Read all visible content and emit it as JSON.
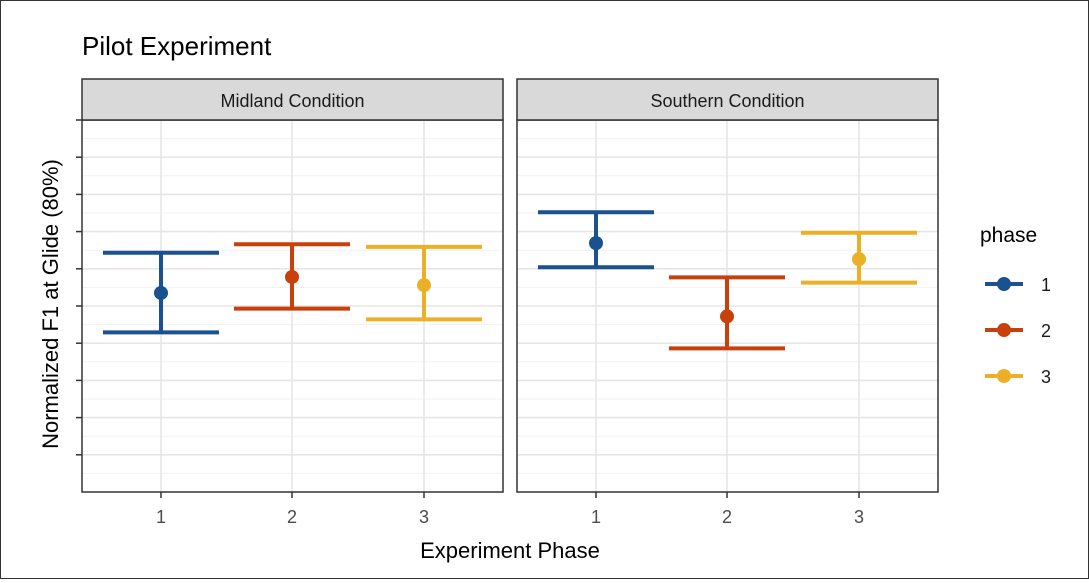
{
  "chart_data": {
    "type": "errorbar",
    "title": "Pilot Experiment",
    "xlabel": "Experiment Phase",
    "ylabel": "Normalized F1 at Glide (80%)",
    "ylim": [
      0,
      10
    ],
    "y_ticks": [
      1,
      2,
      3,
      4,
      5,
      6,
      7,
      8,
      9,
      10
    ],
    "y_tick_labels_shown": false,
    "categories": [
      "1",
      "2",
      "3"
    ],
    "grid": true,
    "legend": {
      "title": "phase",
      "position": "right",
      "items": [
        {
          "label": "1",
          "color": "#1a5190"
        },
        {
          "label": "2",
          "color": "#c8400c"
        },
        {
          "label": "3",
          "color": "#ecb026"
        }
      ]
    },
    "panels": [
      {
        "label": "Midland Condition",
        "points": [
          {
            "phase": "1",
            "mean": 5.35,
            "lower": 4.29,
            "upper": 6.43
          },
          {
            "phase": "2",
            "mean": 5.78,
            "lower": 4.93,
            "upper": 6.66
          },
          {
            "phase": "3",
            "mean": 5.56,
            "lower": 4.64,
            "upper": 6.59
          }
        ]
      },
      {
        "label": "Southern Condition",
        "points": [
          {
            "phase": "1",
            "mean": 6.69,
            "lower": 6.04,
            "upper": 7.52
          },
          {
            "phase": "2",
            "mean": 4.72,
            "lower": 3.86,
            "upper": 5.77
          },
          {
            "phase": "3",
            "mean": 6.26,
            "lower": 5.63,
            "upper": 6.97
          }
        ]
      }
    ]
  }
}
